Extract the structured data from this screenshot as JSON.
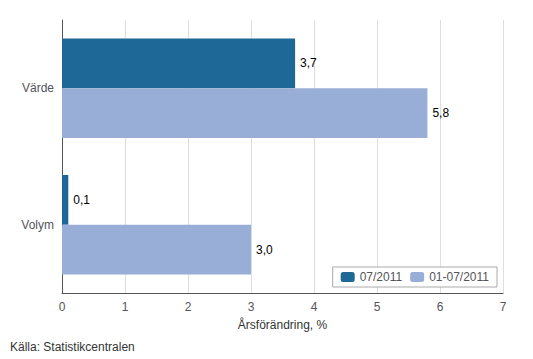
{
  "chart_data": {
    "type": "bar",
    "orientation": "horizontal",
    "categories": [
      "Värde",
      "Volym"
    ],
    "series": [
      {
        "name": "07/2011",
        "color": "#1e6898",
        "values": [
          3.7,
          0.1
        ],
        "value_labels": [
          "3,7",
          "0,1"
        ]
      },
      {
        "name": "01-07/2011",
        "color": "#99aed6",
        "values": [
          5.8,
          3.0
        ],
        "value_labels": [
          "5,8",
          "3,0"
        ]
      }
    ],
    "xlabel": "Årsförändring, %",
    "xlim": [
      0,
      7
    ],
    "xticks": [
      0,
      1,
      2,
      3,
      4,
      5,
      6,
      7
    ],
    "grid": true,
    "legend": "lower right",
    "data_labels": true,
    "annotations": [
      "Källa: Statistikcentralen"
    ]
  }
}
